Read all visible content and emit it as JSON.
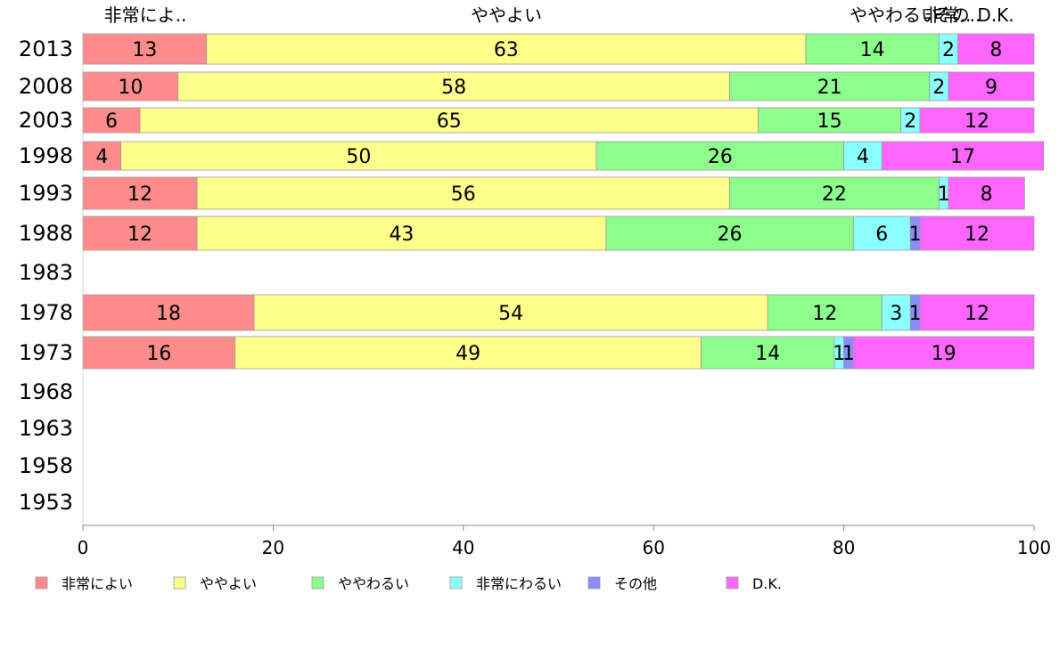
{
  "chart_data": {
    "type": "bar",
    "orientation": "horizontal",
    "stacked": true,
    "categories": [
      "2013",
      "2008",
      "2003",
      "1998",
      "1993",
      "1988",
      "1983",
      "1978",
      "1973",
      "1968",
      "1963",
      "1958",
      "1953"
    ],
    "series": [
      {
        "name": "非常によい",
        "color": "#ff8c8c",
        "values": [
          13,
          10,
          6,
          4,
          12,
          12,
          null,
          18,
          16,
          null,
          null,
          null,
          null
        ]
      },
      {
        "name": "ややよい",
        "color": "#ffff8c",
        "values": [
          63,
          58,
          65,
          50,
          56,
          43,
          null,
          54,
          49,
          null,
          null,
          null,
          null
        ]
      },
      {
        "name": "ややわるい",
        "color": "#8cff8c",
        "values": [
          14,
          21,
          15,
          26,
          22,
          26,
          null,
          12,
          14,
          null,
          null,
          null,
          null
        ]
      },
      {
        "name": "非常にわるい",
        "color": "#8cffff",
        "values": [
          2,
          2,
          2,
          4,
          1,
          6,
          null,
          3,
          1,
          null,
          null,
          null,
          null
        ]
      },
      {
        "name": "その他",
        "color": "#8c8cff",
        "values": [
          0,
          0,
          0,
          0,
          0,
          1,
          null,
          1,
          1,
          null,
          null,
          null,
          null
        ]
      },
      {
        "name": "D.K.",
        "color": "#ff66ff",
        "values": [
          8,
          9,
          12,
          17,
          8,
          12,
          null,
          12,
          19,
          null,
          null,
          null,
          null
        ]
      }
    ],
    "xlim": [
      0,
      100
    ],
    "xticks": [
      "0",
      "20",
      "40",
      "60",
      "80",
      "100"
    ],
    "top_labels": [
      "非常によ..",
      "ややよい",
      "ややわるい",
      "非常..",
      "その..",
      "D.K."
    ],
    "legend": [
      "非常によい",
      "ややよい",
      "ややわるい",
      "非常にわるい",
      "その他",
      "D.K."
    ],
    "legend_position": "bottom",
    "grid": false
  }
}
